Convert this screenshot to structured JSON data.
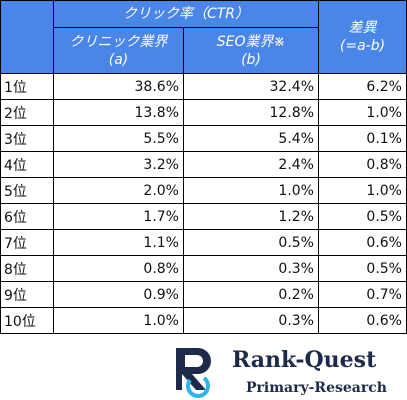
{
  "table": {
    "header": {
      "group": "クリック率（CTR）",
      "col_a": [
        "クリニック業界",
        "(a)"
      ],
      "col_b": [
        "SEO業界※",
        "(b)"
      ],
      "diff": [
        "差異",
        "(=a-b)"
      ]
    },
    "rows": [
      [
        "1位",
        "38.6%",
        "32.4%",
        "6.2%"
      ],
      [
        "2位",
        "13.8%",
        "12.8%",
        "1.0%"
      ],
      [
        "3位",
        "5.5%",
        "5.4%",
        "0.1%"
      ],
      [
        "4位",
        "3.2%",
        "2.4%",
        "0.8%"
      ],
      [
        "5位",
        "2.0%",
        "1.0%",
        "1.0%"
      ],
      [
        "6位",
        "1.7%",
        "1.2%",
        "0.5%"
      ],
      [
        "7位",
        "1.1%",
        "0.5%",
        "0.6%"
      ],
      [
        "8位",
        "0.8%",
        "0.3%",
        "0.5%"
      ],
      [
        "9位",
        "0.9%",
        "0.2%",
        "0.7%"
      ],
      [
        "10位",
        "1.0%",
        "0.3%",
        "0.6%"
      ]
    ]
  },
  "logo": {
    "name": "Rank-Quest",
    "tagline": "Primary-Research"
  }
}
